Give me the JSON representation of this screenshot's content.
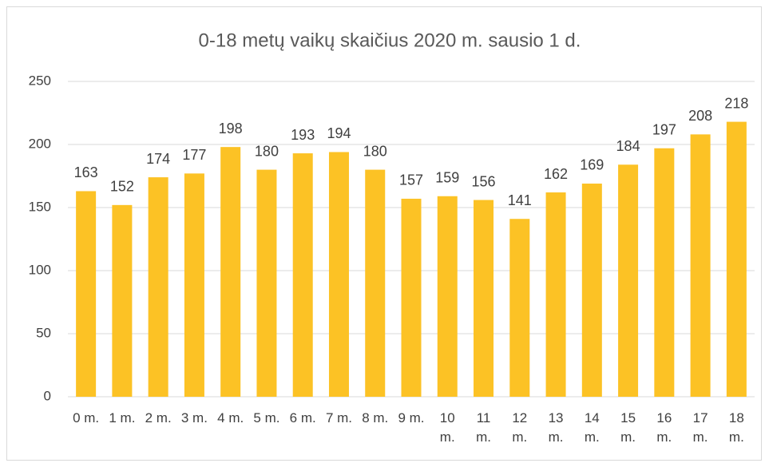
{
  "chart_data": {
    "type": "bar",
    "title": "0-18 metų vaikų skaičius 2020 m. sausio 1 d.",
    "categories": [
      "0 m.",
      "1 m.",
      "2 m.",
      "3 m.",
      "4 m.",
      "5 m.",
      "6 m.",
      "7 m.",
      "8 m.",
      "9 m.",
      "10 m.",
      "11 m.",
      "12 m.",
      "13 m.",
      "14 m.",
      "15 m.",
      "16 m.",
      "17 m.",
      "18 m."
    ],
    "values": [
      163,
      152,
      174,
      177,
      198,
      180,
      193,
      194,
      180,
      157,
      159,
      156,
      141,
      162,
      169,
      184,
      197,
      208,
      218
    ],
    "color": "#fcc225",
    "ylim": [
      0,
      250
    ],
    "yticks": [
      0,
      50,
      100,
      150,
      200,
      250
    ],
    "grid": true
  }
}
